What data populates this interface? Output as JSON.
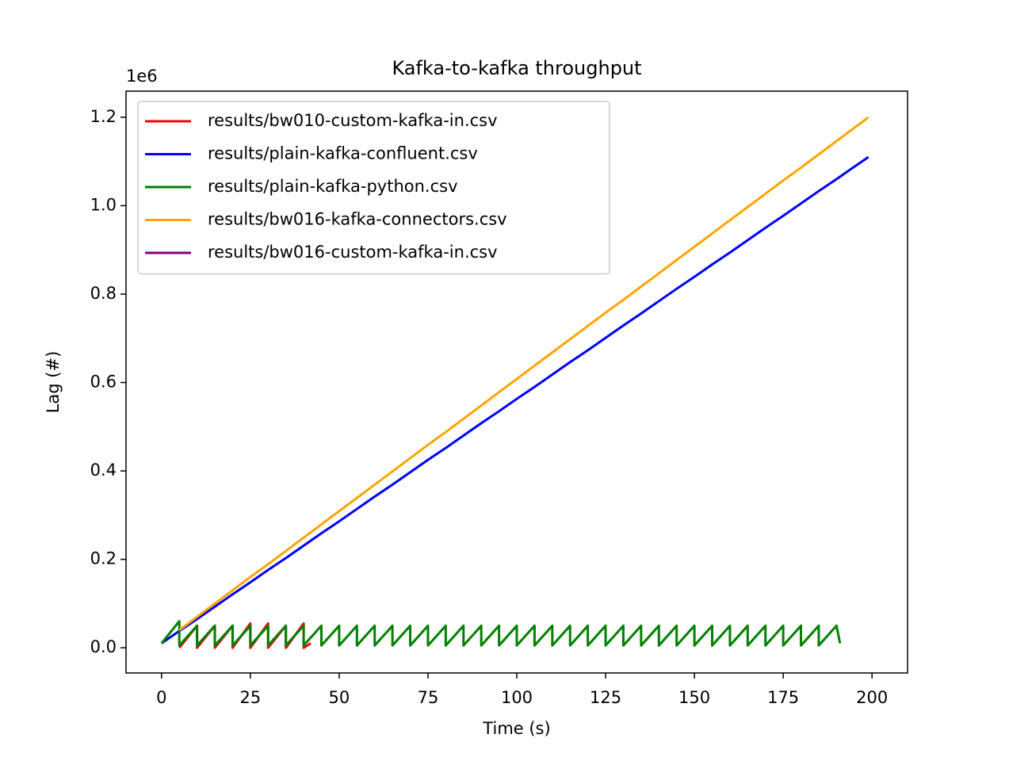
{
  "chart_data": {
    "type": "line",
    "title": "Kafka-to-kafka throughput",
    "x_label": "Time (s)",
    "y_label": "Lag (#)",
    "y_offset_label": "1e6",
    "xlim": [
      -10,
      210
    ],
    "xticks": [
      0,
      25,
      50,
      75,
      100,
      125,
      150,
      175,
      200
    ],
    "ylim": [
      -0.057,
      1.259
    ],
    "yticks": [
      {
        "value": 0,
        "label": "0.0"
      },
      0.2,
      0.4,
      0.6,
      0.8,
      {
        "value": 1,
        "label": "1.0"
      },
      1.2
    ],
    "legend": "upper left",
    "series": [
      {
        "name": "results/bw010-custom-kafka-in.csv",
        "color": "red",
        "x": [
          5,
          10,
          10,
          15,
          15,
          20,
          20,
          25,
          25,
          30,
          30,
          35,
          35,
          40,
          40,
          42
        ],
        "values": [
          0,
          0.05,
          0,
          0.05,
          0,
          0.05,
          0,
          0.055,
          0,
          0.055,
          0,
          0.05,
          0,
          0.055,
          0,
          0.01
        ]
      },
      {
        "name": "results/plain-kafka-confluent.csv",
        "color": "blue",
        "x": [
          0,
          5,
          10,
          15,
          20,
          25,
          30,
          35,
          40,
          45,
          50,
          55,
          60,
          65,
          70,
          75,
          80,
          85,
          90,
          95,
          100,
          105,
          110,
          115,
          120,
          125,
          130,
          135,
          140,
          145,
          150,
          155,
          160,
          165,
          170,
          175,
          180,
          185,
          190,
          195,
          199
        ],
        "values": [
          0.01,
          0.038,
          0.065,
          0.093,
          0.121,
          0.148,
          0.176,
          0.203,
          0.231,
          0.259,
          0.286,
          0.314,
          0.342,
          0.369,
          0.397,
          0.425,
          0.452,
          0.48,
          0.508,
          0.535,
          0.563,
          0.59,
          0.618,
          0.646,
          0.673,
          0.701,
          0.729,
          0.756,
          0.784,
          0.812,
          0.839,
          0.867,
          0.894,
          0.922,
          0.95,
          0.977,
          1.005,
          1.033,
          1.06,
          1.088,
          1.11
        ]
      },
      {
        "name": "results/plain-kafka-python.csv",
        "color": "green",
        "x": [
          0,
          5,
          5,
          10,
          10,
          15,
          15,
          20,
          20,
          25,
          25,
          30,
          30,
          35,
          35,
          40,
          40,
          45,
          45,
          50,
          50,
          55,
          55,
          60,
          60,
          65,
          65,
          70,
          70,
          75,
          75,
          80,
          80,
          85,
          85,
          90,
          90,
          95,
          95,
          100,
          100,
          105,
          105,
          110,
          110,
          115,
          115,
          120,
          120,
          125,
          125,
          130,
          130,
          135,
          135,
          140,
          140,
          145,
          145,
          150,
          150,
          155,
          155,
          160,
          160,
          165,
          165,
          170,
          170,
          175,
          175,
          180,
          180,
          185,
          185,
          190,
          191
        ],
        "values": [
          0.01,
          0.06,
          0.005,
          0.05,
          0.005,
          0.05,
          0.005,
          0.05,
          0.005,
          0.05,
          0.005,
          0.05,
          0.005,
          0.05,
          0.005,
          0.05,
          0.005,
          0.05,
          0.005,
          0.05,
          0.005,
          0.05,
          0.005,
          0.05,
          0.005,
          0.05,
          0.005,
          0.05,
          0.005,
          0.05,
          0.005,
          0.05,
          0.005,
          0.05,
          0.005,
          0.05,
          0.005,
          0.05,
          0.005,
          0.05,
          0.005,
          0.05,
          0.005,
          0.05,
          0.005,
          0.05,
          0.005,
          0.05,
          0.005,
          0.05,
          0.005,
          0.05,
          0.005,
          0.05,
          0.005,
          0.05,
          0.005,
          0.05,
          0.005,
          0.05,
          0.005,
          0.05,
          0.005,
          0.05,
          0.005,
          0.05,
          0.005,
          0.05,
          0.005,
          0.05,
          0.005,
          0.05,
          0.005,
          0.05,
          0.005,
          0.05,
          0.01
        ]
      },
      {
        "name": "results/bw016-kafka-connectors.csv",
        "color": "orange",
        "x": [
          5,
          10,
          15,
          20,
          25,
          30,
          35,
          40,
          45,
          50,
          55,
          60,
          65,
          70,
          75,
          80,
          85,
          90,
          95,
          100,
          105,
          110,
          115,
          120,
          125,
          130,
          135,
          140,
          145,
          150,
          155,
          160,
          165,
          170,
          175,
          180,
          185,
          190,
          195,
          199
        ],
        "values": [
          0.04,
          0.07,
          0.1,
          0.13,
          0.16,
          0.189,
          0.219,
          0.249,
          0.279,
          0.309,
          0.339,
          0.369,
          0.399,
          0.429,
          0.459,
          0.488,
          0.518,
          0.548,
          0.578,
          0.608,
          0.638,
          0.668,
          0.698,
          0.728,
          0.758,
          0.787,
          0.817,
          0.847,
          0.877,
          0.907,
          0.937,
          0.967,
          0.997,
          1.027,
          1.057,
          1.086,
          1.116,
          1.146,
          1.176,
          1.2
        ]
      },
      {
        "name": "results/bw016-custom-kafka-in.csv",
        "color": "purple",
        "x": [],
        "values": []
      }
    ]
  }
}
